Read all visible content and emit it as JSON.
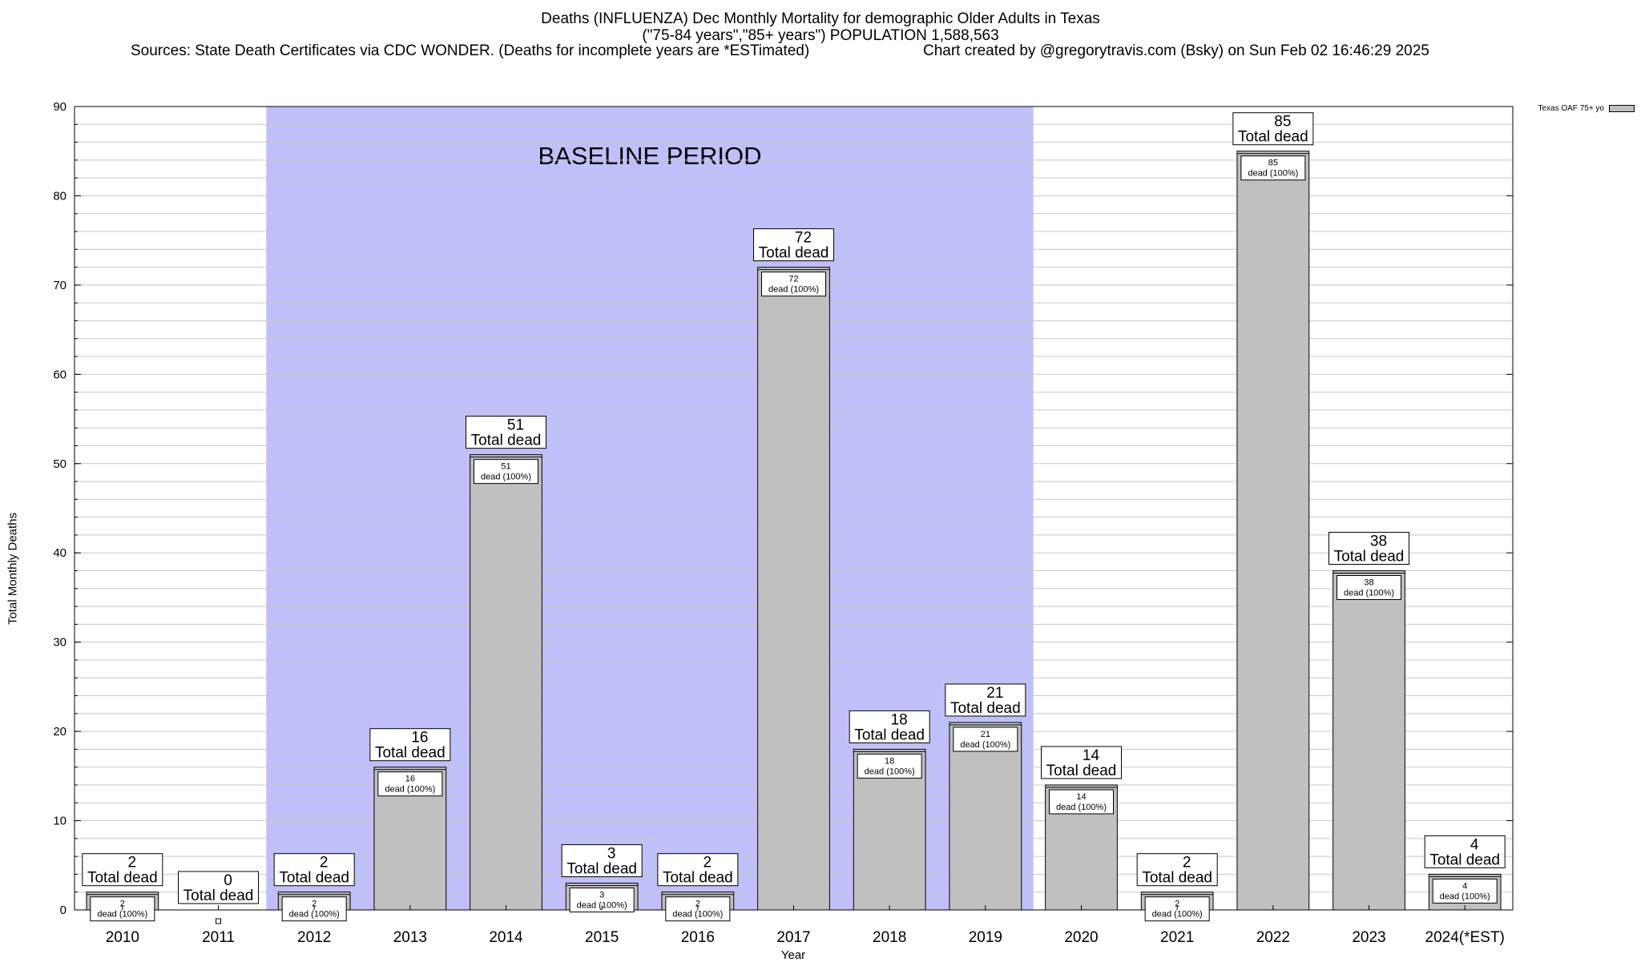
{
  "title_line1": "Deaths (INFLUENZA) Dec Monthly Mortality for demographic Older Adults in Texas",
  "title_line2": "(\"75-84 years\",\"85+ years\") POPULATION 1,588,563",
  "sources": "Sources: State Death Certificates via CDC WONDER. (Deaths for incomplete years are *ESTimated)",
  "credit": "Chart created by @gregorytravis.com (Bsky) on Sun Feb 02 16:46:29 2025",
  "colors": {
    "bar": "#c0c0c0",
    "baseline": "#bfbffa",
    "grid": "#c8c8c8"
  },
  "chart_data": {
    "type": "bar",
    "ylabel": "Total Monthly Deaths",
    "xlabel": "Year",
    "ylim": [
      0,
      90
    ],
    "yticks": [
      0,
      10,
      20,
      30,
      40,
      50,
      60,
      70,
      80,
      90
    ],
    "grid": true,
    "legend": {
      "label": "Texas OAF 75+ yo",
      "placement": "top-right"
    },
    "categories": [
      "2010",
      "2011",
      "2012",
      "2013",
      "2014",
      "2015",
      "2016",
      "2017",
      "2018",
      "2019",
      "2020",
      "2021",
      "2022",
      "2023",
      "2024(*EST)"
    ],
    "values": [
      2,
      0,
      2,
      16,
      51,
      3,
      2,
      72,
      18,
      21,
      14,
      2,
      85,
      38,
      4
    ],
    "total_label": "Total dead",
    "inner_label": "dead (100%)",
    "baseline_period": {
      "label": "BASELINE PERIOD",
      "from": "2012",
      "to": "2019"
    }
  }
}
